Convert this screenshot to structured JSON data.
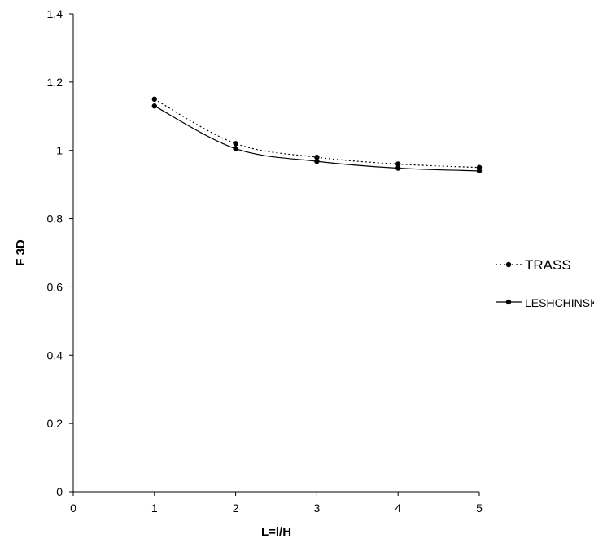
{
  "chart_data": {
    "type": "line",
    "title": "",
    "xlabel": "L=l/H",
    "ylabel": "F 3D",
    "xlim": [
      0,
      5
    ],
    "ylim": [
      0,
      1.4
    ],
    "x_ticks": [
      "0",
      "1",
      "2",
      "3",
      "4",
      "5"
    ],
    "y_ticks": [
      "0",
      "0.2",
      "0.4",
      "0.6",
      "0.8",
      "1",
      "1.2",
      "1.4"
    ],
    "grid": false,
    "legend_position": "right",
    "series": [
      {
        "name": "TRASS",
        "line_style": "dotted",
        "color": "#000000",
        "x": [
          1,
          2,
          3,
          4,
          5
        ],
        "y": [
          1.15,
          1.02,
          0.98,
          0.96,
          0.95
        ]
      },
      {
        "name": "LESHCHINSKY",
        "line_style": "solid",
        "color": "#000000",
        "x": [
          1,
          2,
          3,
          4,
          5
        ],
        "y": [
          1.13,
          1.005,
          0.968,
          0.948,
          0.94
        ]
      }
    ]
  }
}
